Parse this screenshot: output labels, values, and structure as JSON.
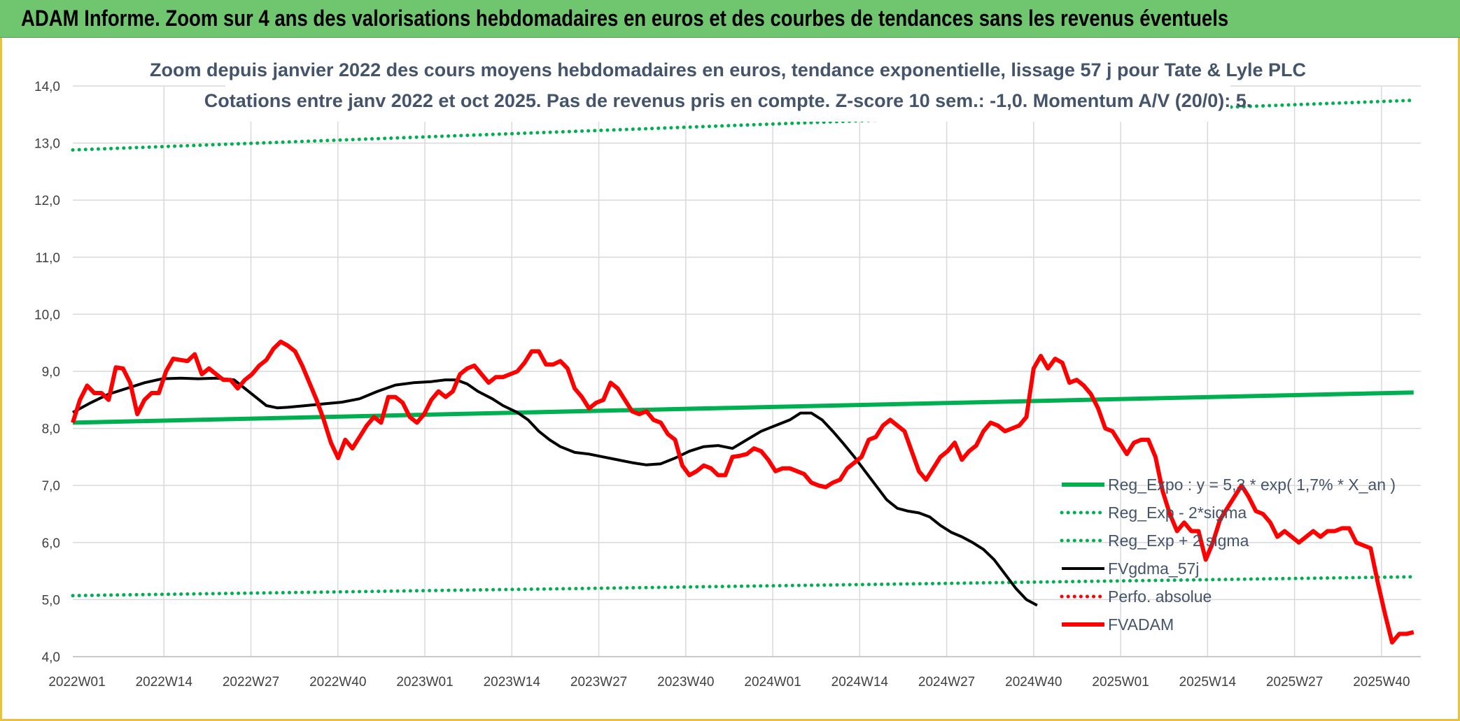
{
  "banner": {
    "title": "ADAM Informe. Zoom sur 4 ans des valorisations hebdomadaires en euros et des courbes de tendances sans les revenus éventuels"
  },
  "chart_data": {
    "type": "line",
    "title_lines": [
      "Zoom depuis janvier 2022 des cours moyens hebdomadaires en euros, tendance exponentielle, lissage 57 j pour Tate & Lyle PLC",
      "Cotations entre janv 2022 et oct 2025. Pas de revenus pris en compte. Z-score 10 sem.: -1,0. Momentum A/V (20/0): 5."
    ],
    "xlabel": "",
    "ylabel": "",
    "ylim": [
      4.0,
      14.0
    ],
    "y_ticks": [
      "4,0",
      "5,0",
      "6,0",
      "7,0",
      "8,0",
      "9,0",
      "10,0",
      "11,0",
      "12,0",
      "13,0",
      "14,0"
    ],
    "x_ticks": [
      "2022W01",
      "2022W14",
      "2022W27",
      "2022W40",
      "2023W01",
      "2023W14",
      "2023W27",
      "2023W40",
      "2024W01",
      "2024W14",
      "2024W27",
      "2024W40",
      "2025W01",
      "2025W14",
      "2025W27",
      "2025W40"
    ],
    "grid": true,
    "legend_position": "bottom-right",
    "colors": {
      "reg_exp": "#00b050",
      "fvgdma": "#000000",
      "perfo": "#ff0000",
      "fvadam": "#ff0000"
    },
    "series": [
      {
        "name": "Reg_Expo : y = 5,3 * exp( 1,7% *  X_an )",
        "style": "solid",
        "points": [
          [
            0,
            8.1
          ],
          [
            201,
            8.63
          ]
        ]
      },
      {
        "name": "Reg_Exp - 2*sigma",
        "style": "dotted",
        "points": [
          [
            0,
            5.07
          ],
          [
            201,
            5.4
          ]
        ]
      },
      {
        "name": "Reg_Exp + 2 sigma",
        "style": "dotted",
        "points": [
          [
            0,
            12.88
          ],
          [
            201,
            13.75
          ]
        ]
      },
      {
        "name": "FVgdma_57j",
        "style": "solid",
        "points": [
          [
            0,
            8.28
          ],
          [
            5,
            8.45
          ],
          [
            10,
            8.6
          ],
          [
            15,
            8.7
          ],
          [
            20,
            8.8
          ],
          [
            25,
            8.87
          ],
          [
            30,
            8.88
          ],
          [
            35,
            8.87
          ],
          [
            40,
            8.88
          ],
          [
            45,
            8.85
          ],
          [
            48,
            8.7
          ],
          [
            51,
            8.55
          ],
          [
            54,
            8.4
          ],
          [
            57,
            8.36
          ],
          [
            60,
            8.37
          ],
          [
            65,
            8.4
          ],
          [
            70,
            8.43
          ],
          [
            75,
            8.46
          ],
          [
            80,
            8.52
          ],
          [
            85,
            8.65
          ],
          [
            90,
            8.76
          ],
          [
            95,
            8.8
          ],
          [
            100,
            8.82
          ],
          [
            104,
            8.85
          ],
          [
            107,
            8.85
          ],
          [
            110,
            8.78
          ],
          [
            113,
            8.65
          ],
          [
            117,
            8.52
          ],
          [
            120,
            8.4
          ],
          [
            124,
            8.28
          ],
          [
            127,
            8.15
          ],
          [
            130,
            7.95
          ],
          [
            133,
            7.8
          ],
          [
            136,
            7.68
          ],
          [
            140,
            7.58
          ],
          [
            144,
            7.55
          ],
          [
            148,
            7.5
          ],
          [
            152,
            7.45
          ],
          [
            156,
            7.4
          ],
          [
            160,
            7.36
          ],
          [
            164,
            7.38
          ],
          [
            168,
            7.48
          ],
          [
            172,
            7.6
          ],
          [
            176,
            7.68
          ],
          [
            180,
            7.7
          ],
          [
            184,
            7.65
          ],
          [
            188,
            7.8
          ],
          [
            192,
            7.95
          ],
          [
            196,
            8.05
          ],
          [
            200,
            8.15
          ],
          [
            203,
            8.27
          ],
          [
            206,
            8.27
          ],
          [
            209,
            8.15
          ],
          [
            212,
            7.95
          ],
          [
            215,
            7.73
          ],
          [
            218,
            7.5
          ],
          [
            221,
            7.25
          ],
          [
            224,
            7.0
          ],
          [
            227,
            6.75
          ],
          [
            230,
            6.6
          ],
          [
            233,
            6.55
          ],
          [
            236,
            6.52
          ],
          [
            239,
            6.45
          ],
          [
            242,
            6.3
          ],
          [
            245,
            6.18
          ],
          [
            248,
            6.1
          ],
          [
            251,
            6.0
          ],
          [
            254,
            5.88
          ],
          [
            257,
            5.7
          ],
          [
            260,
            5.45
          ],
          [
            263,
            5.2
          ],
          [
            266,
            5.0
          ],
          [
            269,
            4.9
          ]
        ]
      },
      {
        "name": "Perfo. absolue",
        "style": "dotted",
        "points": []
      },
      {
        "name": "FVADAM",
        "style": "solid-thick",
        "points": [
          [
            0,
            8.1
          ],
          [
            2,
            8.5
          ],
          [
            4,
            8.75
          ],
          [
            6,
            8.62
          ],
          [
            8,
            8.62
          ],
          [
            10,
            8.5
          ],
          [
            12,
            9.07
          ],
          [
            14,
            9.05
          ],
          [
            16,
            8.8
          ],
          [
            18,
            8.25
          ],
          [
            20,
            8.5
          ],
          [
            22,
            8.62
          ],
          [
            24,
            8.62
          ],
          [
            26,
            9.0
          ],
          [
            28,
            9.22
          ],
          [
            30,
            9.2
          ],
          [
            32,
            9.18
          ],
          [
            34,
            9.3
          ],
          [
            36,
            8.95
          ],
          [
            38,
            9.05
          ],
          [
            40,
            8.95
          ],
          [
            42,
            8.85
          ],
          [
            44,
            8.85
          ],
          [
            46,
            8.7
          ],
          [
            48,
            8.85
          ],
          [
            50,
            8.95
          ],
          [
            52,
            9.1
          ],
          [
            54,
            9.2
          ],
          [
            56,
            9.4
          ],
          [
            58,
            9.52
          ],
          [
            60,
            9.45
          ],
          [
            62,
            9.35
          ],
          [
            64,
            9.1
          ],
          [
            66,
            8.8
          ],
          [
            68,
            8.5
          ],
          [
            70,
            8.15
          ],
          [
            72,
            7.75
          ],
          [
            74,
            7.48
          ],
          [
            76,
            7.8
          ],
          [
            78,
            7.65
          ],
          [
            80,
            7.85
          ],
          [
            82,
            8.05
          ],
          [
            84,
            8.2
          ],
          [
            86,
            8.1
          ],
          [
            88,
            8.55
          ],
          [
            90,
            8.55
          ],
          [
            92,
            8.45
          ],
          [
            94,
            8.2
          ],
          [
            96,
            8.1
          ],
          [
            98,
            8.25
          ],
          [
            100,
            8.5
          ],
          [
            102,
            8.65
          ],
          [
            104,
            8.55
          ],
          [
            106,
            8.65
          ],
          [
            108,
            8.95
          ],
          [
            110,
            9.05
          ],
          [
            112,
            9.1
          ],
          [
            114,
            8.95
          ],
          [
            116,
            8.8
          ],
          [
            118,
            8.9
          ],
          [
            120,
            8.9
          ],
          [
            122,
            8.95
          ],
          [
            124,
            9.0
          ],
          [
            126,
            9.15
          ],
          [
            128,
            9.35
          ],
          [
            130,
            9.35
          ],
          [
            132,
            9.12
          ],
          [
            134,
            9.12
          ],
          [
            136,
            9.18
          ],
          [
            138,
            9.05
          ],
          [
            140,
            8.7
          ],
          [
            142,
            8.55
          ],
          [
            144,
            8.35
          ],
          [
            146,
            8.45
          ],
          [
            148,
            8.5
          ],
          [
            150,
            8.8
          ],
          [
            152,
            8.7
          ],
          [
            154,
            8.5
          ],
          [
            156,
            8.3
          ],
          [
            158,
            8.25
          ],
          [
            160,
            8.3
          ],
          [
            162,
            8.15
          ],
          [
            164,
            8.1
          ],
          [
            166,
            7.9
          ],
          [
            168,
            7.8
          ],
          [
            170,
            7.35
          ],
          [
            172,
            7.18
          ],
          [
            174,
            7.25
          ],
          [
            176,
            7.35
          ],
          [
            178,
            7.3
          ],
          [
            180,
            7.18
          ],
          [
            182,
            7.18
          ],
          [
            184,
            7.5
          ],
          [
            186,
            7.52
          ],
          [
            188,
            7.55
          ],
          [
            190,
            7.65
          ],
          [
            192,
            7.6
          ],
          [
            194,
            7.45
          ],
          [
            196,
            7.25
          ],
          [
            198,
            7.3
          ],
          [
            200,
            7.3
          ],
          [
            202,
            7.25
          ],
          [
            204,
            7.2
          ],
          [
            206,
            7.05
          ],
          [
            208,
            7.0
          ],
          [
            210,
            6.97
          ],
          [
            212,
            7.05
          ],
          [
            214,
            7.1
          ],
          [
            216,
            7.3
          ],
          [
            218,
            7.4
          ],
          [
            220,
            7.5
          ],
          [
            222,
            7.8
          ],
          [
            224,
            7.85
          ],
          [
            226,
            8.05
          ],
          [
            228,
            8.15
          ],
          [
            230,
            8.05
          ],
          [
            232,
            7.95
          ],
          [
            234,
            7.6
          ],
          [
            236,
            7.25
          ],
          [
            238,
            7.1
          ],
          [
            240,
            7.3
          ],
          [
            242,
            7.5
          ],
          [
            244,
            7.6
          ],
          [
            246,
            7.75
          ],
          [
            248,
            7.45
          ],
          [
            250,
            7.6
          ],
          [
            252,
            7.7
          ],
          [
            254,
            7.95
          ],
          [
            256,
            8.1
          ],
          [
            258,
            8.05
          ],
          [
            260,
            7.95
          ],
          [
            262,
            8.0
          ],
          [
            264,
            8.05
          ],
          [
            266,
            8.2
          ],
          [
            268,
            9.05
          ],
          [
            270,
            9.27
          ],
          [
            272,
            9.05
          ],
          [
            274,
            9.22
          ],
          [
            276,
            9.15
          ],
          [
            278,
            8.8
          ],
          [
            280,
            8.85
          ],
          [
            282,
            8.75
          ],
          [
            284,
            8.6
          ],
          [
            286,
            8.35
          ],
          [
            288,
            8.0
          ],
          [
            290,
            7.95
          ],
          [
            292,
            7.75
          ],
          [
            294,
            7.55
          ],
          [
            296,
            7.75
          ],
          [
            298,
            7.8
          ],
          [
            300,
            7.8
          ],
          [
            302,
            7.5
          ],
          [
            304,
            6.9
          ],
          [
            306,
            6.5
          ],
          [
            308,
            6.2
          ],
          [
            310,
            6.35
          ],
          [
            312,
            6.2
          ],
          [
            314,
            6.2
          ],
          [
            316,
            5.7
          ],
          [
            318,
            6.0
          ],
          [
            320,
            6.4
          ],
          [
            322,
            6.6
          ],
          [
            324,
            6.8
          ],
          [
            326,
            7.0
          ],
          [
            328,
            6.8
          ],
          [
            330,
            6.55
          ],
          [
            332,
            6.5
          ],
          [
            334,
            6.35
          ],
          [
            336,
            6.1
          ],
          [
            338,
            6.2
          ],
          [
            340,
            6.1
          ],
          [
            342,
            6.0
          ],
          [
            344,
            6.1
          ],
          [
            346,
            6.2
          ],
          [
            348,
            6.1
          ],
          [
            350,
            6.2
          ],
          [
            352,
            6.2
          ],
          [
            354,
            6.25
          ],
          [
            356,
            6.25
          ],
          [
            358,
            6.0
          ],
          [
            360,
            5.95
          ],
          [
            362,
            5.9
          ],
          [
            364,
            5.3
          ],
          [
            366,
            4.75
          ],
          [
            368,
            4.25
          ],
          [
            370,
            4.4
          ],
          [
            372,
            4.4
          ],
          [
            374,
            4.43
          ]
        ]
      }
    ]
  }
}
